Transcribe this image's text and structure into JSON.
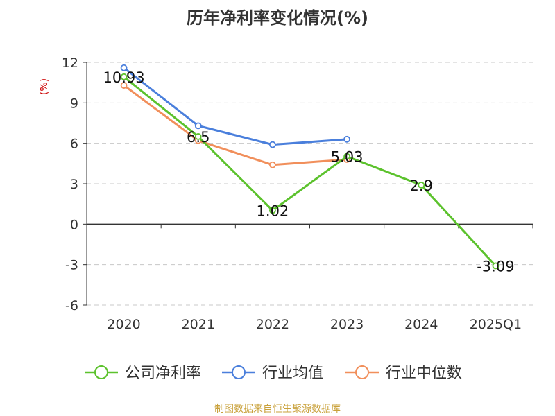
{
  "chart_data": {
    "type": "line",
    "title": "历年净利率变化情况(%)",
    "ylabel": "(%)",
    "xlabel": "",
    "categories": [
      "2020",
      "2021",
      "2022",
      "2023",
      "2024",
      "2025Q1"
    ],
    "ylim": [
      -6,
      12
    ],
    "yticks": [
      12,
      9,
      6,
      3,
      0,
      -3,
      -6
    ],
    "grid": true,
    "legend_position": "bottom",
    "series": [
      {
        "name": "公司净利率",
        "color": "#5cc22d",
        "values": [
          10.93,
          6.5,
          1.02,
          5.03,
          2.9,
          -3.09
        ],
        "data_labels": [
          "10.93",
          "6.5",
          "1.02",
          "5.03",
          "2.9",
          "-3.09"
        ]
      },
      {
        "name": "行业均值",
        "color": "#4a7fdc",
        "values": [
          11.6,
          7.3,
          5.9,
          6.3,
          null,
          null
        ]
      },
      {
        "name": "行业中位数",
        "color": "#f18f5b",
        "values": [
          10.3,
          6.2,
          4.4,
          4.8,
          null,
          null
        ]
      }
    ]
  },
  "source_note": "制图数据来自恒生聚源数据库"
}
